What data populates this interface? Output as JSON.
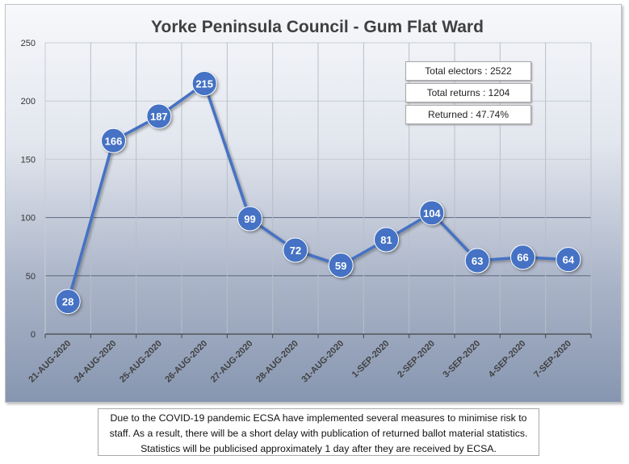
{
  "chart_data": {
    "type": "line",
    "title": "Yorke Peninsula Council - Gum Flat Ward",
    "categories": [
      "21-AUG-2020",
      "24-AUG-2020",
      "25-AUG-2020",
      "26-AUG-2020",
      "27-AUG-2020",
      "28-AUG-2020",
      "31-AUG-2020",
      "1-SEP-2020",
      "2-SEP-2020",
      "3-SEP-2020",
      "4-SEP-2020",
      "7-SEP-2020"
    ],
    "values": [
      28,
      166,
      187,
      215,
      99,
      72,
      59,
      81,
      104,
      63,
      66,
      64
    ],
    "ylim": [
      0,
      250
    ],
    "yticks": [
      "0",
      "50",
      "100",
      "150",
      "200",
      "250"
    ],
    "grid": true,
    "series_color": "#4472c4",
    "data_labels": true
  },
  "stats": {
    "total_electors": "Total electors : 2522",
    "total_returns": "Total returns : 1204",
    "returned": "Returned : 47.74%"
  },
  "note": "Due to the COVID-19 pandemic ECSA have implemented several measures to minimise risk to staff. As a result, there will be a short delay with publication of returned ballot material statistics. Statistics will be publicised approximately 1 day after they are received by ECSA."
}
